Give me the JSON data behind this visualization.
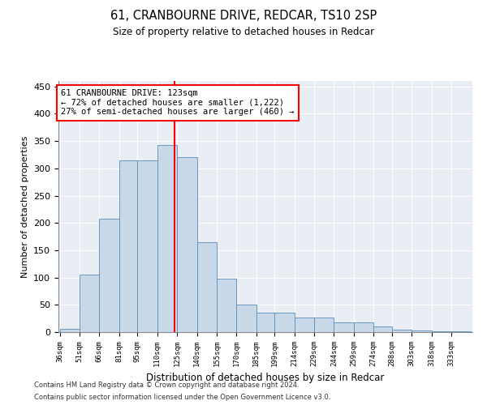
{
  "title1": "61, CRANBOURNE DRIVE, REDCAR, TS10 2SP",
  "title2": "Size of property relative to detached houses in Redcar",
  "xlabel": "Distribution of detached houses by size in Redcar",
  "ylabel": "Number of detached properties",
  "footnote1": "Contains HM Land Registry data © Crown copyright and database right 2024.",
  "footnote2": "Contains public sector information licensed under the Open Government Licence v3.0.",
  "annotation_line1": "61 CRANBOURNE DRIVE: 123sqm",
  "annotation_line2": "← 72% of detached houses are smaller (1,222)",
  "annotation_line3": "27% of semi-detached houses are larger (460) →",
  "property_size": 123,
  "bar_labels": [
    "36sqm",
    "51sqm",
    "66sqm",
    "81sqm",
    "95sqm",
    "110sqm",
    "125sqm",
    "140sqm",
    "155sqm",
    "170sqm",
    "185sqm",
    "199sqm",
    "214sqm",
    "229sqm",
    "244sqm",
    "259sqm",
    "274sqm",
    "288sqm",
    "303sqm",
    "318sqm",
    "333sqm"
  ],
  "bar_left_edges": [
    36,
    51,
    66,
    81,
    95,
    110,
    125,
    140,
    155,
    170,
    185,
    199,
    214,
    229,
    244,
    259,
    274,
    288,
    303,
    318,
    333
  ],
  "bar_widths": [
    15,
    15,
    15,
    14,
    15,
    15,
    15,
    15,
    15,
    15,
    14,
    15,
    15,
    15,
    15,
    15,
    14,
    15,
    15,
    15,
    15
  ],
  "bar_heights": [
    6,
    105,
    208,
    315,
    315,
    343,
    320,
    165,
    98,
    50,
    35,
    35,
    27,
    27,
    18,
    18,
    10,
    5,
    3,
    1,
    1
  ],
  "bar_color": "#c8d8e8",
  "bar_edge_color": "#5b8db8",
  "vline_x": 123,
  "vline_color": "red",
  "annotation_box_color": "red",
  "background_color": "#e8eef4",
  "ylim": [
    0,
    460
  ],
  "yticks": [
    0,
    50,
    100,
    150,
    200,
    250,
    300,
    350,
    400,
    450
  ]
}
